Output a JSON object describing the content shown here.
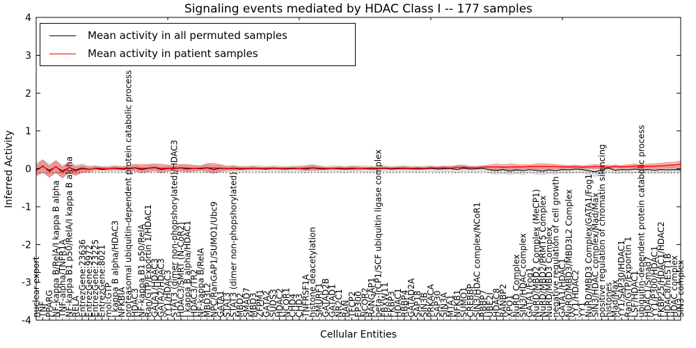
{
  "figure": {
    "title": "Signaling events mediated by HDAC Class I -- 177 samples",
    "xlabel": "Cellular Entities",
    "ylabel": "Inferred Activity"
  },
  "chart_data": {
    "type": "line",
    "title": "Signaling events mediated by HDAC Class I -- 177 samples",
    "xlabel": "Cellular Entities",
    "ylabel": "Inferred Activity",
    "ylim": [
      -4,
      4
    ],
    "yticks": [
      -4,
      -3,
      -2,
      -1,
      0,
      1,
      2,
      3,
      4
    ],
    "grid": false,
    "legend_position": "upper left",
    "baseline": {
      "style": "dotted",
      "color": "#000000",
      "value": -0.1
    },
    "x_categories": [
      "nuclear export",
      "TNF",
      "PPARG",
      "NF-kappa B/RelA/I kappa B alpha",
      "TNF-alpha/TNFR1A",
      "NF-kappa B1 p50/RelA/I kappa B alpha",
      "RELA",
      "EntrezGene:23636",
      "EntrezGene:9972",
      "EntrezGene:23225",
      "EntrezGene:8021",
      "mol:GTP",
      "I kappa B alpha/HDAC3",
      "NFKBIA",
      "proteasomal ubiquitin-dependent protein catabolic process",
      "HDAC3",
      "NF-kappa B1 p50/RelA",
      "Ran/GTP/Exportin 1/HDAC1",
      "GATA1/HDAC3",
      "GATA2/HDAC3",
      "YY1/HDAC3",
      "STAT3 (dimer non-phopshorylated)/HDAC3",
      "HDAC3/SMRT (N-CoR2)",
      "I kappa B alpha/HDAC1",
      "HDAC3/TR2",
      "NF-kappa B/RelA",
      "MBD3L2",
      "NPC/RanGAP1/SUMO1/Ubc9",
      "GATA1",
      "STAT3",
      "STAT3 (dimer non-phopshorylated)",
      "MBD2",
      "SMAD7",
      "MBD3",
      "ZFPM1",
      "GATA2",
      "SUDS3",
      "HDAC2",
      "NCOR1",
      "CHD4",
      "CHD3",
      "TNFRSF1A",
      "histone deacetylation",
      "SMURF1",
      "GATAD2B",
      "GATAD1",
      "NR2C1",
      "RAN",
      "TFCP2",
      "EP300",
      "NCOR2",
      "RANGAP1",
      "beta-TrCP1/SCF ubiquitin ligase complex",
      "FBXW11",
      "FKBP3",
      "HDAC1",
      "RBBP4",
      "GATAD2A",
      "SAP18",
      "SIN3B",
      "PRKACA",
      "SAP30",
      "SIN3A",
      "MTA1",
      "NFKB1",
      "SUMO1",
      "CREBBP",
      "SIN3/HDAC complex/NCoR1",
      "RBBP7",
      "UBE2I",
      "HDAC8",
      "RANBP2",
      "XPO1",
      "NuRD Complex",
      "SIN3/HDAC complex",
      "GATA1/Fog1",
      "NuRD/MBD2 Complex (MeCP1)",
      "NuRD/MBD2/PRMT5 Complex",
      "NuRD/MBD3 Complex",
      "negative regulation of cell growth",
      "GATA1/HDAC1",
      "NuRD/MBD3/MBD3L2 Complex",
      "YY1/HDAC2",
      "YY1",
      "NuRD/MBD3 Complex/GATA1/Fog1",
      "SIN3/HDAC complex/Mad/Max",
      "positive regulation of chromatin silencing",
      "histones",
      "Mad/Max",
      "YY1/SAP30/HDAC1",
      "Ran/GTP/Exportin 1",
      "LSF/HDAC1",
      "ubiquitin-dependent protein catabolic process",
      "HDAC1/Smad7",
      "YY1/P300/HDAC1",
      "FKBP25/HDAC1/HDAC2",
      "HDAC8/hEST1B",
      "HDAC complex",
      "SIN3 complex"
    ],
    "series": [
      {
        "name": "Mean activity in all permuted samples",
        "color": "#000000",
        "values": [
          -0.02,
          0.06,
          -0.04,
          0.05,
          -0.06,
          0.03,
          -0.03,
          0.02,
          -0.01,
          0.01,
          -0.02,
          0.0,
          0.01,
          -0.01,
          0.0,
          0.02,
          -0.02,
          0.01,
          0.03,
          -0.02,
          0.01,
          0.0,
          0.02,
          -0.01,
          0.01,
          0.0,
          0.02,
          -0.02,
          0.01,
          0.0,
          0.01,
          -0.01,
          0.0,
          0.01,
          0.0,
          -0.01,
          0.01,
          0.0,
          -0.01,
          0.0,
          0.01,
          -0.01,
          0.02,
          0.0,
          -0.01,
          0.01,
          0.0,
          -0.01,
          0.0,
          0.01,
          0.0,
          -0.01,
          0.0,
          0.01,
          -0.01,
          0.0,
          0.01,
          0.0,
          -0.01,
          0.0,
          0.01,
          -0.01,
          0.0,
          0.01,
          -0.02,
          0.02,
          -0.01,
          0.0,
          0.01,
          -0.03,
          -0.05,
          -0.02,
          -0.06,
          -0.03,
          -0.05,
          -0.02,
          -0.04,
          -0.06,
          -0.03,
          -0.05,
          -0.02,
          -0.03,
          -0.01,
          -0.02,
          -0.05,
          -0.08,
          -0.03,
          0.02,
          -0.04,
          -0.02,
          -0.03,
          -0.01,
          -0.03,
          -0.02,
          -0.04,
          -0.02,
          -0.03,
          -0.02,
          -0.03
        ]
      },
      {
        "name": "Mean activity in patient samples",
        "color": "#ff0000",
        "values": [
          -0.05,
          0.08,
          -0.08,
          0.06,
          -0.1,
          0.04,
          -0.06,
          0.0,
          -0.02,
          0.02,
          0.01,
          0.0,
          0.02,
          0.01,
          0.02,
          0.03,
          0.01,
          0.02,
          0.04,
          0.01,
          0.02,
          0.01,
          0.03,
          0.02,
          0.01,
          0.02,
          0.03,
          0.02,
          0.02,
          0.01,
          0.02,
          0.01,
          0.01,
          0.02,
          0.01,
          0.01,
          0.02,
          0.01,
          0.01,
          0.02,
          0.01,
          0.02,
          0.03,
          0.02,
          0.01,
          0.01,
          0.02,
          0.01,
          0.02,
          0.01,
          0.01,
          0.02,
          0.01,
          0.02,
          0.01,
          0.02,
          0.02,
          0.01,
          0.02,
          0.01,
          0.03,
          0.02,
          0.03,
          0.02,
          0.04,
          0.04,
          0.03,
          0.03,
          0.04,
          0.05,
          0.05,
          0.04,
          0.05,
          0.05,
          0.05,
          0.06,
          0.06,
          0.06,
          0.06,
          0.06,
          0.05,
          0.05,
          0.05,
          0.04,
          0.05,
          0.06,
          0.05,
          0.04,
          0.06,
          0.05,
          0.06,
          0.07,
          0.06,
          0.07,
          0.07,
          0.08,
          0.09,
          0.1,
          0.12
        ]
      }
    ],
    "bands": [
      {
        "name": "permuted samples spread",
        "color": "#000000",
        "opacity": 0.13,
        "center_series": 0,
        "half_widths": [
          0.18,
          0.19,
          0.18,
          0.18,
          0.17,
          0.16,
          0.14,
          0.12,
          0.1,
          0.09,
          0.09,
          0.09,
          0.09,
          0.09,
          0.09,
          0.1,
          0.1,
          0.1,
          0.1,
          0.1,
          0.09,
          0.09,
          0.1,
          0.1,
          0.09,
          0.09,
          0.12,
          0.12,
          0.11,
          0.09,
          0.09,
          0.09,
          0.09,
          0.09,
          0.09,
          0.09,
          0.09,
          0.09,
          0.09,
          0.09,
          0.09,
          0.1,
          0.1,
          0.09,
          0.09,
          0.09,
          0.09,
          0.09,
          0.09,
          0.09,
          0.09,
          0.09,
          0.09,
          0.09,
          0.09,
          0.09,
          0.09,
          0.09,
          0.09,
          0.09,
          0.09,
          0.09,
          0.09,
          0.09,
          0.1,
          0.1,
          0.09,
          0.09,
          0.09,
          0.1,
          0.11,
          0.11,
          0.11,
          0.11,
          0.11,
          0.1,
          0.11,
          0.11,
          0.11,
          0.1,
          0.1,
          0.1,
          0.1,
          0.1,
          0.12,
          0.14,
          0.12,
          0.1,
          0.1,
          0.1,
          0.1,
          0.1,
          0.1,
          0.1,
          0.1,
          0.1,
          0.1,
          0.1,
          0.1
        ]
      },
      {
        "name": "patient samples spread",
        "color": "#ff0000",
        "opacity": 0.32,
        "edge_color": "#d25c5c",
        "center_series": 1,
        "half_widths": [
          0.14,
          0.16,
          0.15,
          0.16,
          0.15,
          0.14,
          0.12,
          0.1,
          0.07,
          0.05,
          0.04,
          0.04,
          0.05,
          0.04,
          0.06,
          0.09,
          0.11,
          0.1,
          0.09,
          0.12,
          0.08,
          0.06,
          0.09,
          0.1,
          0.08,
          0.06,
          0.11,
          0.13,
          0.09,
          0.05,
          0.06,
          0.04,
          0.04,
          0.04,
          0.03,
          0.03,
          0.03,
          0.03,
          0.03,
          0.03,
          0.04,
          0.06,
          0.07,
          0.05,
          0.03,
          0.03,
          0.04,
          0.03,
          0.05,
          0.04,
          0.03,
          0.03,
          0.03,
          0.03,
          0.03,
          0.03,
          0.04,
          0.03,
          0.03,
          0.03,
          0.03,
          0.03,
          0.04,
          0.03,
          0.06,
          0.05,
          0.03,
          0.03,
          0.04,
          0.06,
          0.08,
          0.07,
          0.08,
          0.07,
          0.06,
          0.05,
          0.07,
          0.08,
          0.07,
          0.06,
          0.05,
          0.04,
          0.05,
          0.04,
          0.05,
          0.06,
          0.05,
          0.04,
          0.05,
          0.04,
          0.05,
          0.06,
          0.05,
          0.06,
          0.07,
          0.07,
          0.08,
          0.08,
          0.09
        ]
      }
    ]
  },
  "legend": {
    "items": [
      {
        "label": "Mean activity in all permuted samples",
        "color": "#000000"
      },
      {
        "label": "Mean activity in patient samples",
        "color": "#ff0000"
      }
    ]
  }
}
